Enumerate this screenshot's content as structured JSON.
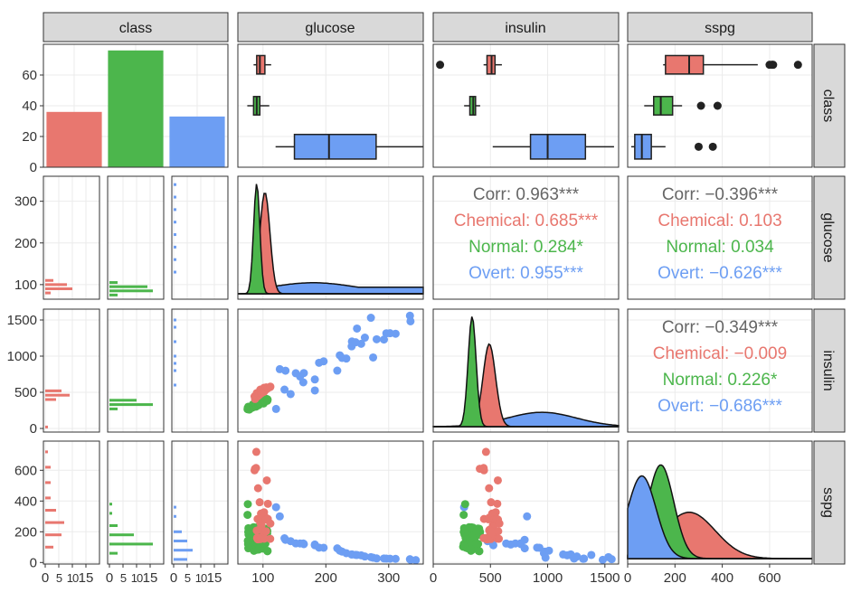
{
  "colors": {
    "Chemical": "#E8776F",
    "Normal": "#4CB64C",
    "Overt": "#6D9EF3",
    "Corr": "#666666",
    "strip_bg": "#D9D9D9",
    "grid": "#EBEBEB"
  },
  "chart_data": {
    "type": "pairs",
    "variables": [
      "class",
      "glucose",
      "insulin",
      "sspg"
    ],
    "groups": [
      "Chemical",
      "Normal",
      "Overt"
    ],
    "class_counts": {
      "Chemical": 36,
      "Normal": 76,
      "Overt": 33
    },
    "axes": {
      "class_count": {
        "range": [
          0,
          80
        ],
        "ticks": [
          0,
          20,
          40,
          60
        ],
        "labels": [
          "0",
          "20",
          "40",
          "60"
        ]
      },
      "glucose_left": {
        "range": [
          65,
          360
        ],
        "ticks": [
          100,
          200,
          300
        ],
        "labels": [
          "100",
          "200",
          "300"
        ]
      },
      "insulin_left": {
        "range": [
          -50,
          1650
        ],
        "ticks": [
          0,
          500,
          1000,
          1500
        ],
        "labels": [
          "0",
          "500",
          "1000",
          "1500"
        ]
      },
      "sspg_left": {
        "range": [
          -10,
          790
        ],
        "ticks": [
          0,
          200,
          400,
          600
        ],
        "labels": [
          "0",
          "200",
          "400",
          "600"
        ]
      },
      "glucose_bottom": {
        "range": [
          60,
          355
        ],
        "ticks": [
          100,
          200,
          300
        ],
        "labels": [
          "100",
          "200",
          "300"
        ]
      },
      "insulin_bottom": {
        "range": [
          0,
          1620
        ],
        "ticks": [
          0,
          500,
          1000,
          1500
        ],
        "labels": [
          "0",
          "500",
          "1000",
          "1500"
        ]
      },
      "sspg_bottom": {
        "range": [
          0,
          780
        ],
        "ticks": [
          0,
          200,
          400,
          600
        ],
        "labels": [
          "0",
          "200",
          "400",
          "600"
        ]
      },
      "hist_count": {
        "range": [
          0,
          20
        ],
        "ticks": [
          0,
          5,
          10,
          15
        ],
        "labels": [
          "0",
          "5",
          "10",
          "15"
        ]
      }
    },
    "boxplots": {
      "glucose": {
        "Chemical": {
          "lo": 85,
          "q1": 90,
          "med": 95,
          "q3": 103,
          "hi": 113,
          "out": []
        },
        "Normal": {
          "lo": 75,
          "q1": 85,
          "med": 90,
          "q3": 95,
          "hi": 110,
          "out": []
        },
        "Overt": {
          "lo": 120,
          "q1": 150,
          "med": 205,
          "q3": 280,
          "hi": 355,
          "out": []
        }
      },
      "insulin": {
        "Chemical": {
          "lo": 440,
          "q1": 470,
          "med": 510,
          "q3": 540,
          "hi": 600,
          "out": [
            60
          ]
        },
        "Normal": {
          "lo": 270,
          "q1": 320,
          "med": 350,
          "q3": 370,
          "hi": 410,
          "out": []
        },
        "Overt": {
          "lo": 520,
          "q1": 850,
          "med": 1000,
          "q3": 1330,
          "hi": 1580,
          "out": []
        }
      },
      "sspg": {
        "Chemical": {
          "lo": 150,
          "q1": 160,
          "med": 260,
          "q3": 320,
          "hi": 550,
          "out": [
            600,
            610,
            615,
            720
          ]
        },
        "Normal": {
          "lo": 70,
          "q1": 110,
          "med": 140,
          "q3": 190,
          "hi": 230,
          "out": [
            310,
            380
          ]
        },
        "Overt": {
          "lo": 15,
          "q1": 30,
          "med": 60,
          "q3": 100,
          "hi": 160,
          "out": [
            300,
            360
          ]
        }
      }
    },
    "correlations": {
      "glucose_insulin": [
        {
          "label": "Corr: 0.963***",
          "group": "Corr"
        },
        {
          "label": "Chemical: 0.685***",
          "group": "Chemical"
        },
        {
          "label": "Normal: 0.284*",
          "group": "Normal"
        },
        {
          "label": "Overt: 0.955***",
          "group": "Overt"
        }
      ],
      "glucose_sspg": [
        {
          "label": "Corr: −0.396***",
          "group": "Corr"
        },
        {
          "label": "Chemical: 0.103",
          "group": "Chemical"
        },
        {
          "label": "Normal: 0.034",
          "group": "Normal"
        },
        {
          "label": "Overt: −0.626***",
          "group": "Overt"
        }
      ],
      "insulin_sspg": [
        {
          "label": "Corr: −0.349***",
          "group": "Corr"
        },
        {
          "label": "Chemical: −0.009",
          "group": "Chemical"
        },
        {
          "label": "Normal: 0.226*",
          "group": "Normal"
        },
        {
          "label": "Overt: −0.686***",
          "group": "Overt"
        }
      ]
    },
    "densities": {
      "glucose": {
        "Chemical": {
          "peak_x": 103,
          "sd": 8,
          "peak": 0.92
        },
        "Normal": {
          "peak_x": 90,
          "sd": 5,
          "peak": 1.0
        },
        "Overt": {
          "peak_x": 180,
          "sd": 70,
          "peak": 0.1
        }
      },
      "insulin": {
        "Chemical": {
          "peak_x": 490,
          "sd": 55,
          "peak": 0.75
        },
        "Normal": {
          "peak_x": 340,
          "sd": 35,
          "peak": 1.0
        },
        "Overt": {
          "peak_x": 950,
          "sd": 300,
          "peak": 0.13
        }
      },
      "sspg": {
        "Chemical": {
          "peak_x": 260,
          "sd": 110,
          "peak": 0.42
        },
        "Normal": {
          "peak_x": 140,
          "sd": 55,
          "peak": 0.85
        },
        "Overt": {
          "peak_x": 60,
          "sd": 60,
          "peak": 0.75
        }
      }
    },
    "histograms": {
      "glucose": {
        "Chemical": [
          [
            80,
            2
          ],
          [
            90,
            10
          ],
          [
            100,
            8
          ],
          [
            110,
            3
          ]
        ],
        "Normal": [
          [
            75,
            3
          ],
          [
            85,
            16
          ],
          [
            95,
            14
          ],
          [
            105,
            3
          ]
        ],
        "Overt": [
          [
            130,
            1
          ],
          [
            160,
            1
          ],
          [
            190,
            1
          ],
          [
            220,
            1
          ],
          [
            250,
            1
          ],
          [
            280,
            1
          ],
          [
            310,
            1
          ],
          [
            340,
            1
          ]
        ]
      },
      "insulin": {
        "Chemical": [
          [
            400,
            4
          ],
          [
            460,
            9
          ],
          [
            520,
            6
          ],
          [
            20,
            1
          ]
        ],
        "Normal": [
          [
            270,
            3
          ],
          [
            330,
            16
          ],
          [
            390,
            10
          ]
        ],
        "Overt": [
          [
            600,
            1
          ],
          [
            800,
            1
          ],
          [
            900,
            1
          ],
          [
            1000,
            1
          ],
          [
            1200,
            1
          ],
          [
            1400,
            1
          ],
          [
            1500,
            1
          ]
        ]
      },
      "sspg": {
        "Chemical": [
          [
            100,
            3
          ],
          [
            180,
            6
          ],
          [
            260,
            7
          ],
          [
            340,
            4
          ],
          [
            420,
            2
          ],
          [
            520,
            2
          ],
          [
            620,
            2
          ],
          [
            720,
            1
          ]
        ],
        "Normal": [
          [
            60,
            3
          ],
          [
            120,
            16
          ],
          [
            180,
            9
          ],
          [
            240,
            3
          ],
          [
            320,
            1
          ],
          [
            380,
            1
          ]
        ],
        "Overt": [
          [
            20,
            5
          ],
          [
            80,
            7
          ],
          [
            140,
            5
          ],
          [
            200,
            3
          ],
          [
            300,
            1
          ],
          [
            360,
            1
          ]
        ]
      }
    }
  }
}
